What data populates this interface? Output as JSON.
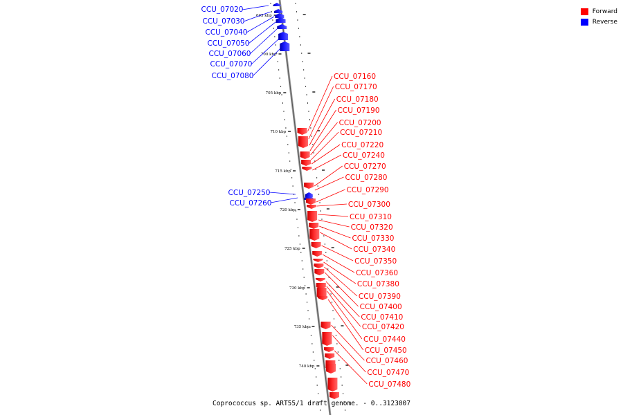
{
  "legend": [
    {
      "label": "Forward",
      "color": "#ff0000"
    },
    {
      "label": "Reverse",
      "color": "#0000ff"
    }
  ],
  "caption": "Coprococcus sp. ART55/1 draft genome. - 0..3123007",
  "ticks": [
    "695 kbp",
    "700 kbp",
    "705 kbp",
    "710 kbp",
    "715 kbp",
    "720 kbp",
    "725 kbp",
    "730 kbp",
    "735 kbp",
    "740 kbp"
  ],
  "reverse_genes": [
    "CCU_07020",
    "CCU_07030",
    "CCU_07040",
    "CCU_07050",
    "CCU_07060",
    "CCU_07070",
    "CCU_07080",
    "CCU_07250",
    "CCU_07260"
  ],
  "forward_genes": [
    "CCU_07160",
    "CCU_07170",
    "CCU_07180",
    "CCU_07190",
    "CCU_07200",
    "CCU_07210",
    "CCU_07220",
    "CCU_07240",
    "CCU_07270",
    "CCU_07280",
    "CCU_07290",
    "CCU_07300",
    "CCU_07310",
    "CCU_07320",
    "CCU_07330",
    "CCU_07340",
    "CCU_07350",
    "CCU_07360",
    "CCU_07380",
    "CCU_07390",
    "CCU_07400",
    "CCU_07410",
    "CCU_07420",
    "CCU_07440",
    "CCU_07450",
    "CCU_07460",
    "CCU_07470",
    "CCU_07480"
  ]
}
